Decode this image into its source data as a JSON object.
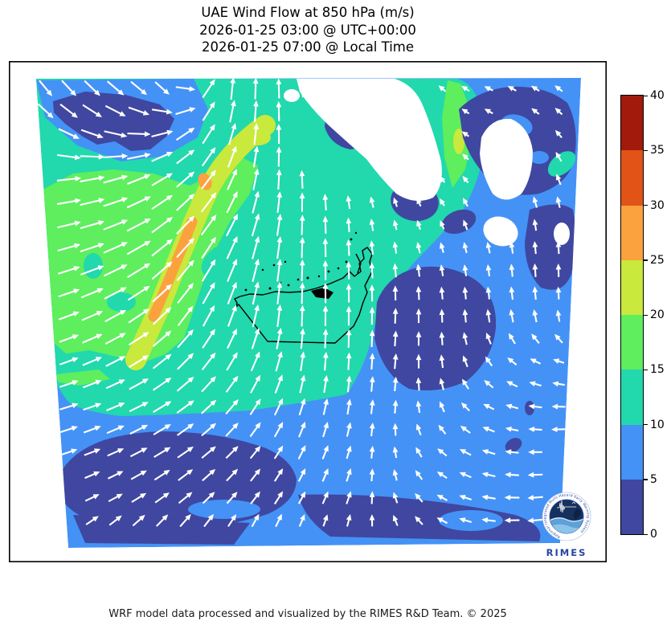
{
  "title": {
    "line1": "UAE Wind Flow at 850 hPa (m/s)",
    "line2": "2026-01-25 03:00 @ UTC+00:00",
    "line3": "2026-01-25 07:00 @ Local Time"
  },
  "footer": {
    "credit": "WRF model data processed and visualized by the RIMES R&D Team. © 2025"
  },
  "logo": {
    "name": "RIMES",
    "ring_text": "Regional Integrated Multi-Hazard Early Warning System",
    "brand_color": "#27479e"
  },
  "colorbar": {
    "units": "m/s",
    "ticks": [
      0,
      5,
      10,
      15,
      20,
      25,
      30,
      35,
      40
    ],
    "bin_colors": [
      "#3f47a0",
      "#4492f6",
      "#22d8ad",
      "#5eee5e",
      "#c9e93c",
      "#fba23e",
      "#e25317",
      "#a11a0c"
    ]
  },
  "chart_data": {
    "type": "heatmap",
    "title": "UAE Wind Flow at 850 hPa (m/s)",
    "valid_time_utc": "2026-01-25 03:00 @ UTC+00:00",
    "valid_time_local": "2026-01-25 07:00 @ Local Time",
    "variable": "wind speed and direction at 850 hPa",
    "units": "m/s",
    "bin_edges": [
      0,
      5,
      10,
      15,
      20,
      25,
      30,
      35,
      40
    ],
    "legend_position": "right",
    "arrow_color": "#ffffff",
    "coastline_color": "#000000",
    "regions": [
      {
        "area": "northwest quadrant",
        "speed_ms": "15-25",
        "note": "broad green field with an embedded 25-30 m/s yellow-orange jet streak aligned NE-SW"
      },
      {
        "area": "top-left corner",
        "speed_ms": "0-10",
        "note": "calm indigo patch inside a light-blue band"
      },
      {
        "area": "center (UAE)",
        "speed_ms": "10-15",
        "note": "teal region with northward flow over the UAE outline"
      },
      {
        "area": "top center",
        "speed_ms": "masked",
        "note": "white terrain mask (ground above 850 hPa) with a 15-25 m/s green streak between lobes"
      },
      {
        "area": "east half",
        "speed_ms": "0-10",
        "note": "blue with large indigo calm patches, weak north-to-west veering flow"
      },
      {
        "area": "south",
        "speed_ms": "0-10",
        "note": "blue with big indigo calm areas; flow turns westward in the southeast corner"
      }
    ],
    "wind_field": {
      "cols": 13,
      "rows": 11,
      "angles_deg_ccw_from_east": [
        [
          -55,
          -50,
          -45,
          -60,
          85,
          90,
          95,
          105,
          120,
          140,
          155,
          150,
          140
        ],
        [
          -40,
          -28,
          -15,
          20,
          70,
          88,
          98,
          110,
          130,
          145,
          150,
          140,
          130
        ],
        [
          0,
          8,
          18,
          35,
          60,
          85,
          95,
          105,
          120,
          135,
          130,
          120,
          110
        ],
        [
          10,
          15,
          25,
          42,
          58,
          78,
          90,
          95,
          105,
          115,
          110,
          100,
          95
        ],
        [
          15,
          20,
          30,
          48,
          64,
          80,
          90,
          92,
          96,
          100,
          98,
          94,
          90
        ],
        [
          18,
          24,
          34,
          52,
          68,
          82,
          90,
          90,
          88,
          92,
          96,
          98,
          92
        ],
        [
          18,
          24,
          32,
          45,
          58,
          72,
          85,
          88,
          85,
          95,
          120,
          150,
          165
        ],
        [
          16,
          20,
          27,
          36,
          48,
          62,
          76,
          82,
          85,
          110,
          150,
          170,
          180
        ],
        [
          18,
          22,
          28,
          35,
          44,
          55,
          66,
          74,
          100,
          140,
          160,
          178,
          185
        ],
        [
          22,
          27,
          33,
          40,
          48,
          56,
          64,
          72,
          110,
          150,
          168,
          182,
          188
        ],
        [
          40,
          48,
          55,
          60,
          66,
          72,
          75,
          82,
          115,
          150,
          172,
          185,
          190
        ]
      ],
      "magnitudes": [
        [
          1.0,
          1.1,
          1.1,
          0.9,
          1.2,
          1.1,
          0.9,
          0.7,
          0.6,
          0.5,
          0.5,
          0.5,
          0.5
        ],
        [
          1.1,
          1.2,
          1.2,
          1.1,
          1.2,
          1.1,
          0.9,
          0.6,
          0.5,
          0.4,
          0.5,
          0.5,
          0.5
        ],
        [
          1.2,
          1.3,
          1.3,
          1.2,
          1.2,
          1.1,
          0.9,
          0.6,
          0.5,
          0.4,
          0.5,
          0.6,
          0.6
        ],
        [
          1.2,
          1.3,
          1.4,
          1.3,
          1.3,
          1.2,
          1.0,
          0.7,
          0.5,
          0.5,
          0.6,
          0.6,
          0.6
        ],
        [
          1.1,
          1.3,
          1.4,
          1.4,
          1.3,
          1.2,
          1.1,
          0.9,
          0.7,
          0.6,
          0.6,
          0.7,
          0.7
        ],
        [
          1.1,
          1.2,
          1.3,
          1.3,
          1.2,
          1.2,
          1.1,
          1.0,
          0.8,
          0.7,
          0.7,
          0.7,
          0.6
        ],
        [
          1.0,
          1.1,
          1.2,
          1.2,
          1.1,
          1.1,
          1.0,
          0.9,
          0.8,
          0.7,
          0.6,
          0.6,
          0.6
        ],
        [
          1.0,
          1.0,
          1.1,
          1.1,
          1.0,
          1.0,
          0.9,
          0.8,
          0.7,
          0.6,
          0.6,
          0.7,
          0.7
        ],
        [
          0.9,
          0.9,
          1.0,
          1.0,
          0.9,
          0.8,
          0.8,
          0.7,
          0.6,
          0.6,
          0.7,
          0.7,
          0.8
        ],
        [
          0.8,
          0.8,
          0.9,
          0.9,
          0.8,
          0.8,
          0.7,
          0.7,
          0.6,
          0.6,
          0.7,
          0.8,
          0.8
        ],
        [
          0.7,
          0.8,
          0.8,
          0.8,
          0.7,
          0.7,
          0.6,
          0.6,
          0.6,
          0.6,
          0.7,
          0.8,
          0.8
        ]
      ]
    }
  }
}
